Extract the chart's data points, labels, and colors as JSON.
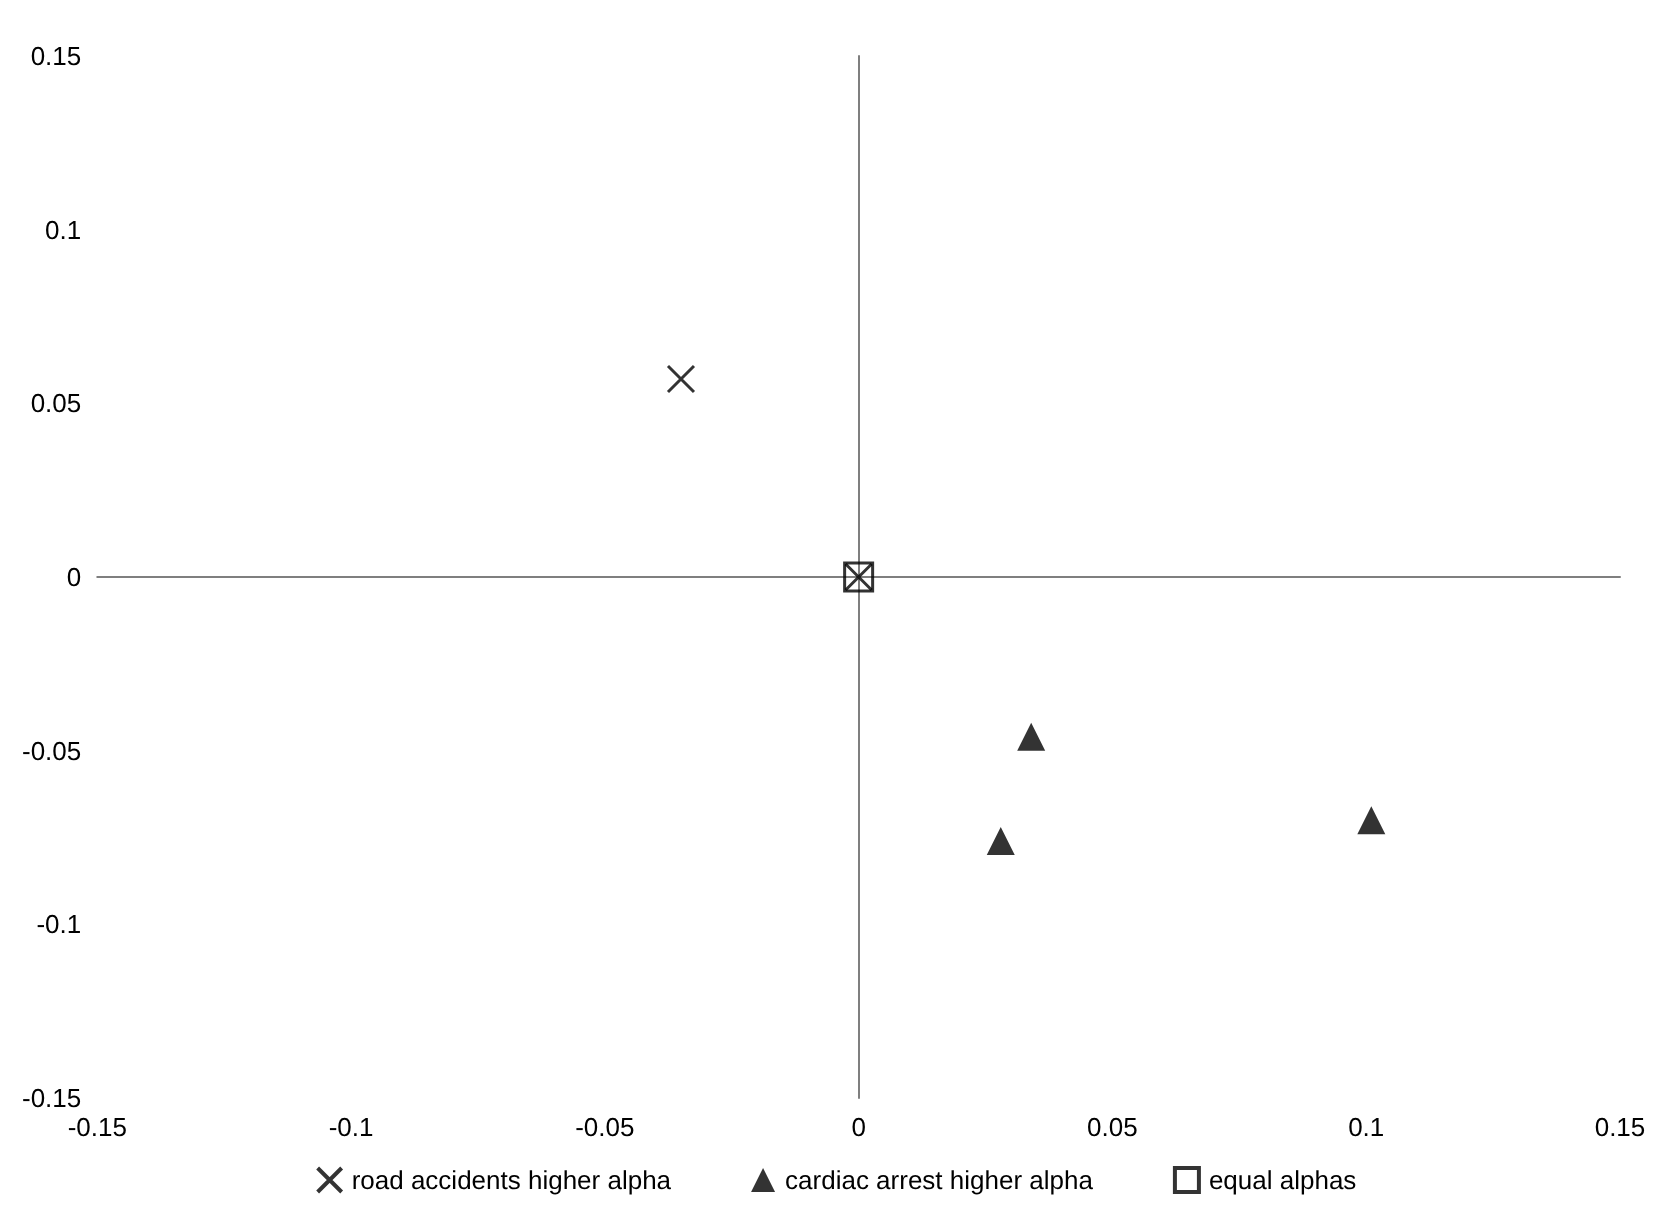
{
  "chart_data": {
    "type": "scatter",
    "xlim": [
      -0.15,
      0.15
    ],
    "ylim": [
      -0.15,
      0.15
    ],
    "xticks": [
      -0.15,
      -0.1,
      -0.05,
      0,
      0.05,
      0.1,
      0.15
    ],
    "yticks": [
      -0.15,
      -0.1,
      -0.05,
      0,
      0.05,
      0.1,
      0.15
    ],
    "legend": "bottom",
    "series": [
      {
        "name": "road accidents higher alpha",
        "color": "#000000",
        "marker": "cross",
        "x": [
          -0.035,
          0
        ],
        "values": [
          0.057,
          0
        ]
      },
      {
        "name": "cardiac arrest higher alpha",
        "color": "#000000",
        "marker": "triangle",
        "x": [
          0.034,
          0.028,
          0.101
        ],
        "values": [
          -0.046,
          -0.076,
          -0.07
        ]
      },
      {
        "name": "equal alphas",
        "color": "#000000",
        "marker": "square",
        "x": [
          0
        ],
        "values": [
          0
        ]
      }
    ]
  }
}
